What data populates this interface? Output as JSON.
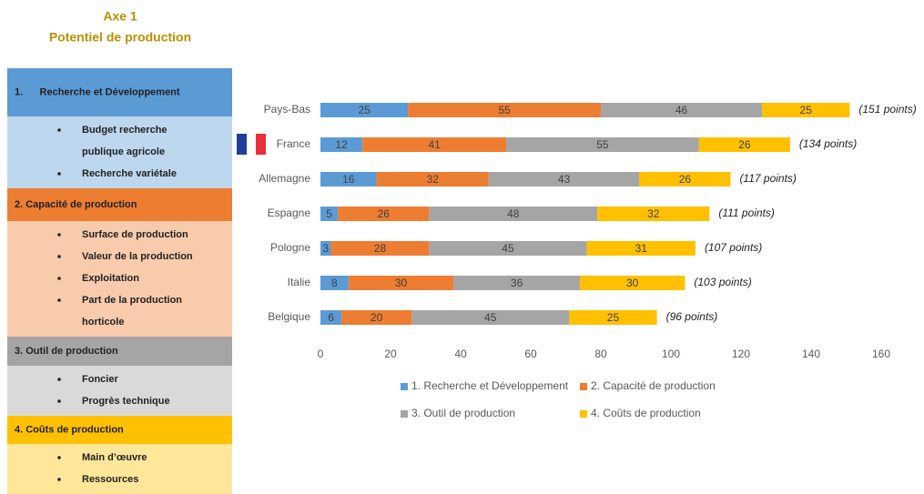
{
  "page_title": [
    "Axe 1",
    "Potentiel de production"
  ],
  "sidebar": {
    "sections": [
      {
        "title": "1.      Recherche et Développement",
        "items": [
          [
            "Budget recherche",
            "publique agricole"
          ],
          [
            "Recherche variétale"
          ]
        ]
      },
      {
        "title": "2. Capacité de production",
        "items": [
          [
            "Surface de production"
          ],
          [
            "Valeur de la production"
          ],
          [
            "Exploitation"
          ],
          [
            "Part de la production",
            "horticole"
          ]
        ]
      },
      {
        "title": "3. Outil de production",
        "items": [
          [
            "Foncier"
          ],
          [
            "Progrès technique"
          ]
        ]
      },
      {
        "title": "4. Coûts de production",
        "items": [
          [
            "Main d’œuvre"
          ],
          [
            "Ressources"
          ]
        ]
      }
    ]
  },
  "chart_data": {
    "type": "stacked_bar_horizontal",
    "categories": [
      "Pays-Bas",
      "France",
      "Allemagne",
      "Espagne",
      "Pologne",
      "Italie",
      "Belgique"
    ],
    "series": [
      {
        "name": "1. Recherche et Développement",
        "color": "#5b9bd5",
        "values": [
          25,
          12,
          16,
          5,
          3,
          8,
          6
        ]
      },
      {
        "name": "2. Capacité de production",
        "color": "#ed7d31",
        "values": [
          55,
          41,
          32,
          26,
          28,
          30,
          20
        ]
      },
      {
        "name": "3. Outil de production",
        "color": "#a5a5a5",
        "values": [
          46,
          55,
          43,
          48,
          45,
          36,
          45
        ]
      },
      {
        "name": "4. Coûts de production",
        "color": "#ffc000",
        "values": [
          25,
          26,
          26,
          32,
          31,
          30,
          25
        ]
      }
    ],
    "annotations": [
      "(151 points)",
      "(134 points)",
      "(117 points)",
      "(111 points)",
      "(107 points)",
      "(103 points)",
      "(96 points)"
    ],
    "xlim": [
      0,
      160
    ],
    "xticks": [
      0,
      20,
      40,
      60,
      80,
      100,
      120,
      140,
      160
    ]
  }
}
